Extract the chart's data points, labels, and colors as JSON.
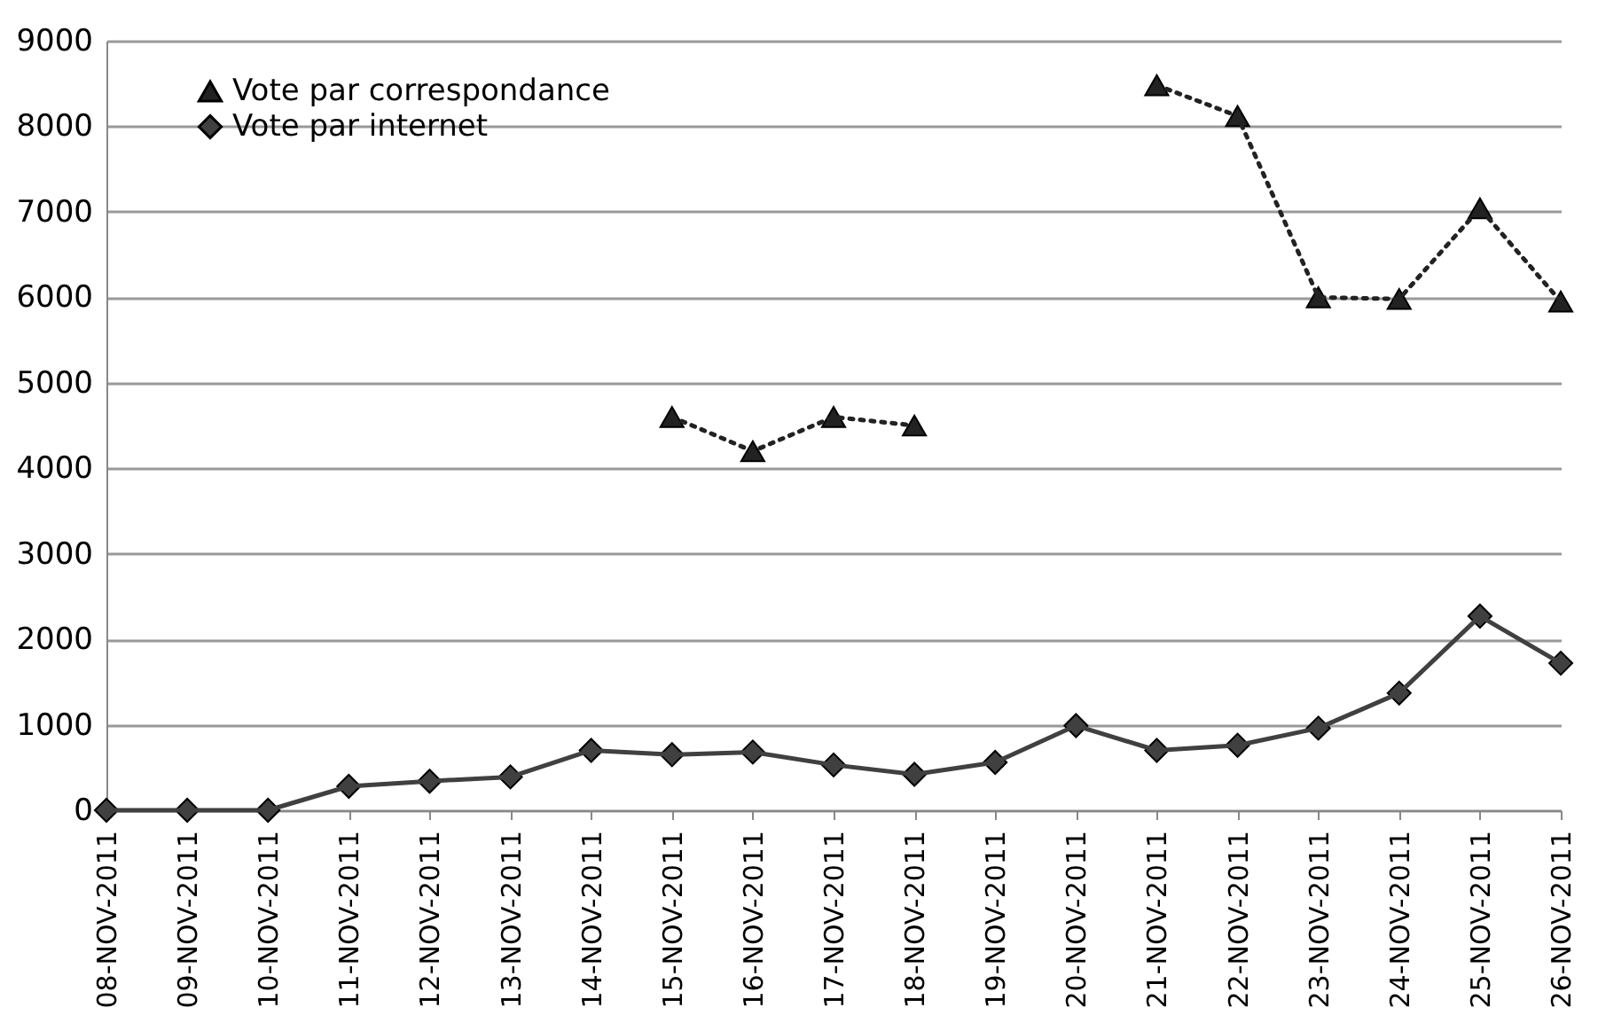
{
  "chart_data": {
    "type": "line",
    "categories": [
      "08-NOV-2011",
      "09-NOV-2011",
      "10-NOV-2011",
      "11-NOV-2011",
      "12-NOV-2011",
      "13-NOV-2011",
      "14-NOV-2011",
      "15-NOV-2011",
      "16-NOV-2011",
      "17-NOV-2011",
      "18-NOV-2011",
      "19-NOV-2011",
      "20-NOV-2011",
      "21-NOV-2011",
      "22-NOV-2011",
      "23-NOV-2011",
      "24-NOV-2011",
      "25-NOV-2011",
      "26-NOV-2011"
    ],
    "series": [
      {
        "name": "Vote par correspondance",
        "color": "#222222",
        "marker": "triangle",
        "line_style": "dotted",
        "values": [
          null,
          null,
          null,
          null,
          null,
          null,
          null,
          4600,
          4200,
          4600,
          4500,
          null,
          null,
          8480,
          8120,
          6000,
          5980,
          7040,
          5950
        ]
      },
      {
        "name": "Vote par internet",
        "color": "#404040",
        "marker": "diamond",
        "line_style": "solid",
        "values": [
          0,
          0,
          0,
          280,
          340,
          390,
          700,
          650,
          680,
          530,
          420,
          560,
          990,
          700,
          760,
          960,
          1370,
          2270,
          1720
        ]
      }
    ],
    "ylim": [
      0,
      9000
    ],
    "yticks": [
      0,
      1000,
      2000,
      3000,
      4000,
      5000,
      6000,
      7000,
      8000,
      9000
    ],
    "grid": "y",
    "legend": "top left"
  }
}
